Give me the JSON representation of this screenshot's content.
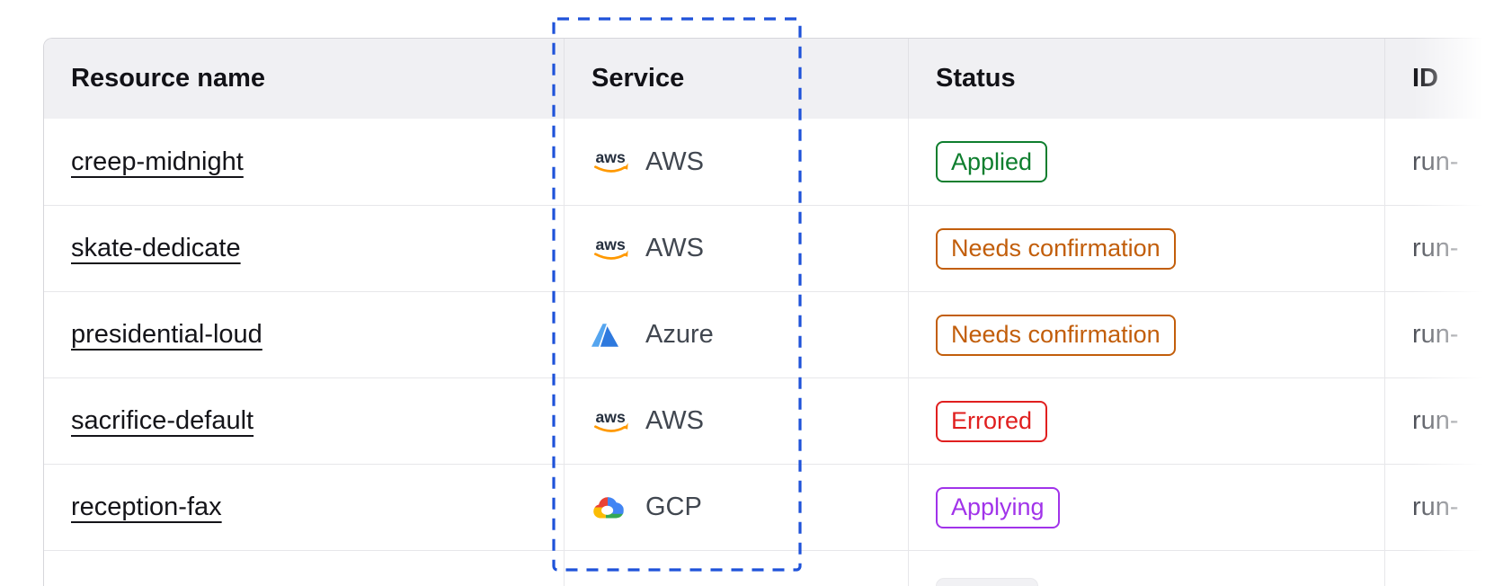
{
  "table": {
    "columns": [
      {
        "key": "resource_name",
        "label": "Resource name"
      },
      {
        "key": "service",
        "label": "Service"
      },
      {
        "key": "status",
        "label": "Status"
      },
      {
        "key": "id",
        "label": "ID"
      }
    ],
    "rows": [
      {
        "resource_name": "creep-midnight",
        "service": "AWS",
        "service_icon": "aws-icon",
        "status": "Applied",
        "status_variant": "success",
        "id": "run-"
      },
      {
        "resource_name": "skate-dedicate",
        "service": "AWS",
        "service_icon": "aws-icon",
        "status": "Needs confirmation",
        "status_variant": "warning",
        "id": "run-"
      },
      {
        "resource_name": "presidential-loud",
        "service": "Azure",
        "service_icon": "azure-icon",
        "status": "Needs confirmation",
        "status_variant": "warning",
        "id": "run-"
      },
      {
        "resource_name": "sacrifice-default",
        "service": "AWS",
        "service_icon": "aws-icon",
        "status": "Errored",
        "status_variant": "critical",
        "id": "run-"
      },
      {
        "resource_name": "reception-fax",
        "service": "GCP",
        "service_icon": "gcp-icon",
        "status": "Applying",
        "status_variant": "highlight",
        "id": "run-"
      }
    ]
  },
  "status_colors": {
    "success": "#0e7e2e",
    "warning": "#c25e0b",
    "critical": "#e01f1f",
    "highlight": "#a133ea"
  },
  "annotation": {
    "target": "service-column",
    "color": "#1e52d9"
  }
}
